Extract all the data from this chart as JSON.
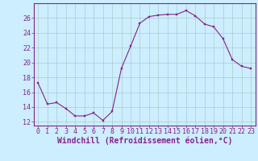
{
  "x": [
    0,
    1,
    2,
    3,
    4,
    5,
    6,
    7,
    8,
    9,
    10,
    11,
    12,
    13,
    14,
    15,
    16,
    17,
    18,
    19,
    20,
    21,
    22,
    23
  ],
  "y": [
    17.2,
    14.4,
    14.6,
    13.8,
    12.8,
    12.8,
    13.2,
    12.2,
    13.4,
    19.2,
    22.2,
    25.3,
    26.2,
    26.4,
    26.5,
    26.5,
    27.0,
    26.3,
    25.2,
    24.8,
    23.2,
    20.4,
    19.5,
    19.2
  ],
  "line_color": "#882288",
  "marker_color": "#882288",
  "bg_color": "#cceeff",
  "grid_color": "#aacccc",
  "axis_color": "#882288",
  "xlabel": "Windchill (Refroidissement éolien,°C)",
  "xlabel_fontsize": 7,
  "tick_fontsize": 6,
  "ylim": [
    11.5,
    28
  ],
  "yticks": [
    12,
    14,
    16,
    18,
    20,
    22,
    24,
    26
  ],
  "xlim": [
    -0.5,
    23.5
  ],
  "xticks": [
    0,
    1,
    2,
    3,
    4,
    5,
    6,
    7,
    8,
    9,
    10,
    11,
    12,
    13,
    14,
    15,
    16,
    17,
    18,
    19,
    20,
    21,
    22,
    23
  ]
}
